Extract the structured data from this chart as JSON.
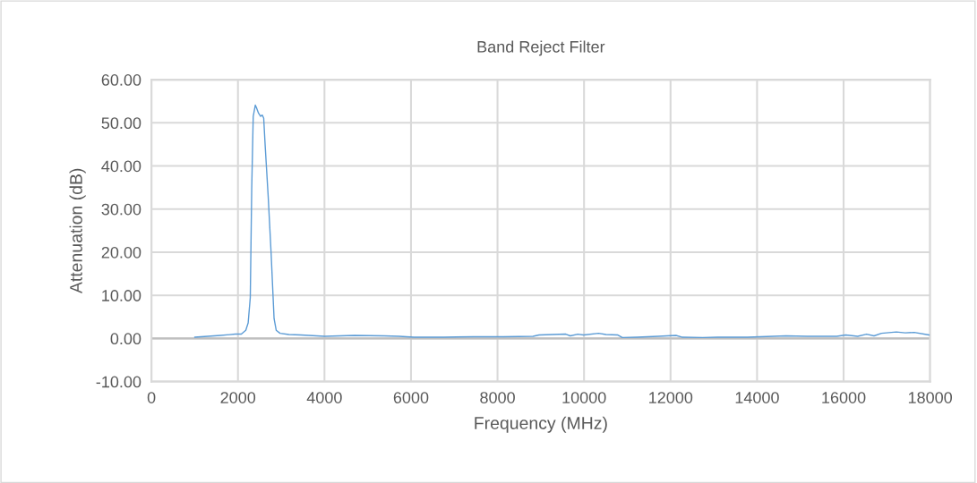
{
  "chart_data": {
    "type": "line",
    "title": "Band Reject Filter",
    "xlabel": "Frequency (MHz)",
    "ylabel": "Attenuation (dB)",
    "x": [
      1000,
      1596,
      1940,
      2078,
      2181,
      2236,
      2285,
      2318,
      2353,
      2401,
      2436,
      2477,
      2525,
      2560,
      2595,
      2628,
      2698,
      2766,
      2835,
      2884,
      2973,
      3179,
      3454,
      4005,
      4693,
      5381,
      5725,
      6069,
      6757,
      7446,
      8134,
      8822,
      8960,
      9579,
      9682,
      9854,
      9992,
      10336,
      10508,
      10783,
      10886,
      11231,
      11712,
      12125,
      12262,
      12744,
      13088,
      13776,
      14671,
      15154,
      15842,
      16049,
      16326,
      16532,
      16704,
      16876,
      17220,
      17426,
      17633,
      17977
    ],
    "series": [
      {
        "color": "#5b9bd5",
        "values": [
          0.3,
          0.7,
          1.0,
          1.0,
          1.9,
          3.6,
          9.5,
          34.5,
          51.5,
          54.1,
          53.3,
          52.2,
          51.5,
          51.8,
          51.1,
          44.9,
          33.1,
          19.9,
          4.6,
          1.9,
          1.2,
          0.9,
          0.8,
          0.5,
          0.7,
          0.6,
          0.5,
          0.3,
          0.3,
          0.4,
          0.4,
          0.5,
          0.8,
          1.0,
          0.6,
          1.0,
          0.8,
          1.2,
          0.9,
          0.8,
          0.2,
          0.3,
          0.5,
          0.7,
          0.3,
          0.2,
          0.3,
          0.3,
          0.6,
          0.5,
          0.5,
          0.8,
          0.5,
          1.0,
          0.6,
          1.2,
          1.5,
          1.3,
          1.4,
          0.8
        ]
      }
    ],
    "xlim": [
      0,
      18000
    ],
    "xticks": [
      0,
      2000,
      4000,
      6000,
      8000,
      10000,
      12000,
      14000,
      16000,
      18000
    ],
    "ylim": [
      -10,
      60
    ],
    "yticks": [
      {
        "value": -10,
        "label": "-10.00"
      },
      {
        "value": 0,
        "label": "0.00"
      },
      {
        "value": 10,
        "label": "10.00"
      },
      {
        "value": 20,
        "label": "20.00"
      },
      {
        "value": 30,
        "label": "30.00"
      },
      {
        "value": 40,
        "label": "40.00"
      },
      {
        "value": 50,
        "label": "50.00"
      },
      {
        "value": 60,
        "label": "60.00"
      }
    ],
    "grid": true,
    "marker": "none",
    "line_style": "solid",
    "ref_lines": [
      {
        "axis": "y",
        "value": 0,
        "color": "#bfbfbf"
      }
    ]
  }
}
